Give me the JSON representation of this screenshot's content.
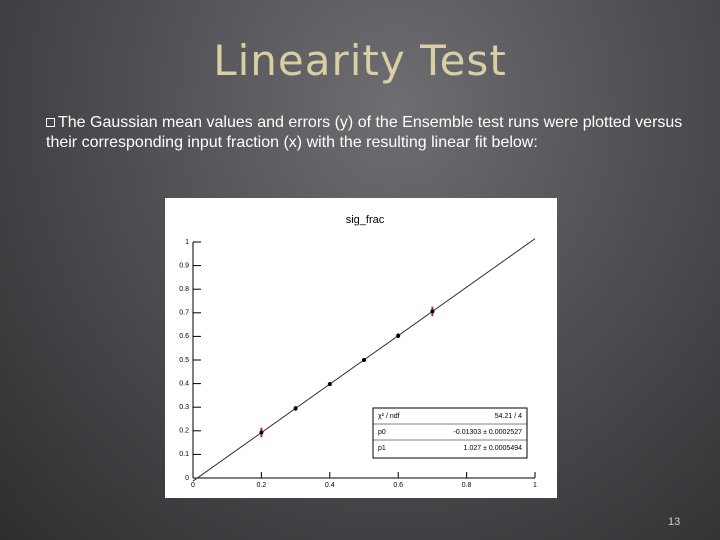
{
  "title": "Linearity Test",
  "bullet": "The Gaussian mean values and errors (y) of the Ensemble test runs were plotted versus their corresponding input fraction (x) with the resulting linear fit below:",
  "page_number": "13",
  "chart_data": {
    "type": "scatter",
    "title": "sig_frac",
    "x": [
      0.2,
      0.3,
      0.4,
      0.5,
      0.6,
      0.7
    ],
    "values": [
      0.193,
      0.295,
      0.398,
      0.5,
      0.603,
      0.706
    ],
    "errors": [
      0.02,
      0.01,
      0.008,
      0.008,
      0.01,
      0.02
    ],
    "color": "#000000",
    "error_color": "#cc2222",
    "xlim": [
      0,
      1
    ],
    "ylim": [
      0,
      1
    ],
    "xticks": [
      0,
      0.2,
      0.4,
      0.6,
      0.8,
      1
    ],
    "yticks": [
      0,
      0.1,
      0.2,
      0.3,
      0.4,
      0.5,
      0.6,
      0.7,
      0.8,
      0.9,
      1
    ],
    "fit_color": "#333333",
    "stats": [
      {
        "name": "χ² / ndf",
        "text": "54.21 / 4"
      },
      {
        "name": "p0",
        "value": -0.01303,
        "error": 0.0002527,
        "text": "-0.01303 ± 0.0002527"
      },
      {
        "name": "p1",
        "value": 1.027,
        "error": 0.0005494,
        "text": "1.027 ± 0.0005494"
      }
    ]
  }
}
